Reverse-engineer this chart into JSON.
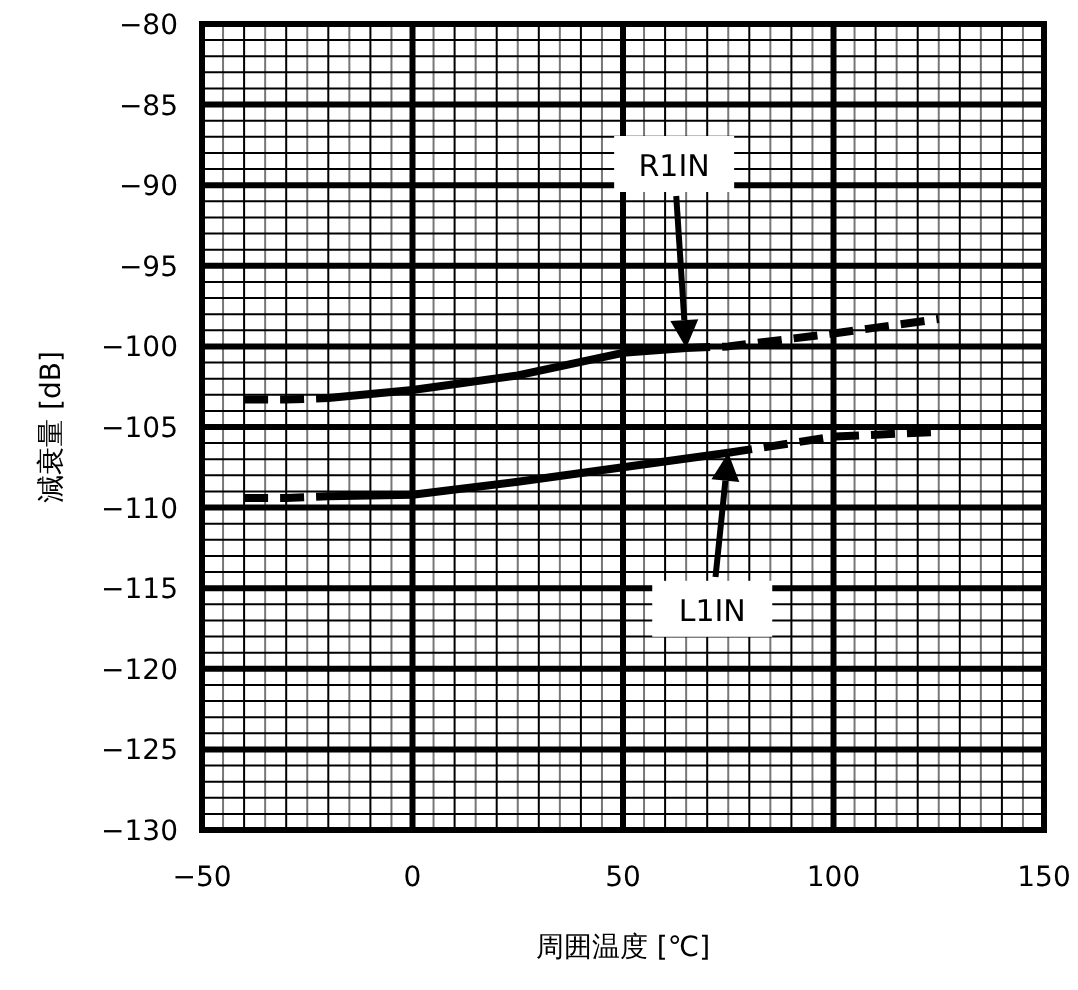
{
  "chart_data": {
    "type": "line",
    "xlabel": "周囲温度 [℃]",
    "ylabel": "減衰量 [dB]",
    "xlim": [
      -50,
      150
    ],
    "xticks": [
      -50,
      0,
      50,
      100,
      150
    ],
    "ylim": [
      -130,
      -80
    ],
    "yticks": [
      -130,
      -125,
      -120,
      -115,
      -110,
      -105,
      -100,
      -95,
      -90,
      -85,
      -80
    ],
    "grid": true,
    "series": [
      {
        "color": "#000000",
        "line_style": "dashed",
        "x": [
          -40,
          -30,
          -20
        ],
        "values": [
          -103.3,
          -103.3,
          -103.2
        ]
      },
      {
        "color": "#000000",
        "line_style": "solid",
        "x": [
          -20,
          0,
          25,
          50,
          65
        ],
        "values": [
          -103.2,
          -102.7,
          -101.8,
          -100.4,
          -100.1
        ]
      },
      {
        "color": "#000000",
        "line_style": "dashed",
        "x": [
          65,
          75,
          100,
          125
        ],
        "values": [
          -100.1,
          -100.0,
          -99.2,
          -98.3
        ]
      },
      {
        "color": "#000000",
        "line_style": "dashed",
        "x": [
          -40,
          -30,
          -20
        ],
        "values": [
          -109.4,
          -109.4,
          -109.3
        ]
      },
      {
        "color": "#000000",
        "line_style": "solid",
        "x": [
          -20,
          0,
          25,
          50,
          75
        ],
        "values": [
          -109.3,
          -109.2,
          -108.4,
          -107.5,
          -106.6
        ]
      },
      {
        "color": "#000000",
        "line_style": "dashed",
        "x": [
          75,
          100,
          125
        ],
        "values": [
          -106.6,
          -105.6,
          -105.3
        ]
      }
    ],
    "annotations": [
      "R1IN",
      "L1IN"
    ]
  }
}
